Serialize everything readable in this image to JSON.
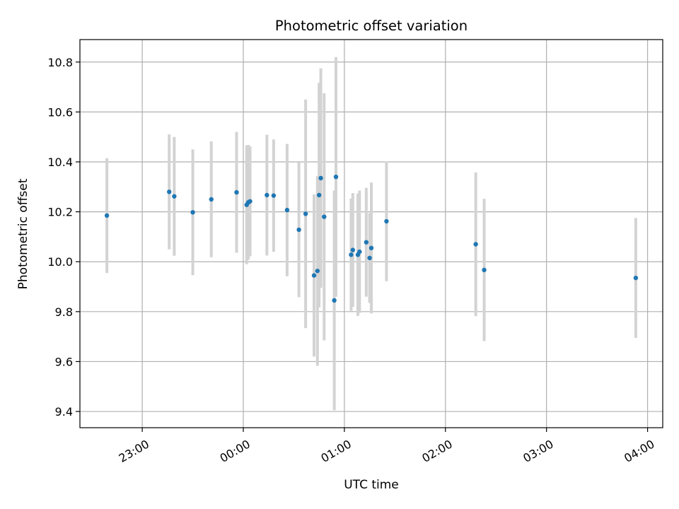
{
  "chart_data": {
    "type": "scatter",
    "title": "Photometric offset variation",
    "xlabel": "UTC time",
    "ylabel": "Photometric offset",
    "x_unit": "UTC time (HH:MM), 22:00 day 1 through 04:00 day 2",
    "xlim": [
      "22:23",
      "04:09"
    ],
    "ylim": [
      9.335,
      10.89
    ],
    "x_ticks": [
      "23:00",
      "00:00",
      "01:00",
      "02:00",
      "03:00",
      "04:00"
    ],
    "y_ticks": [
      "9.4",
      "9.6",
      "9.8",
      "10.0",
      "10.2",
      "10.4",
      "10.6",
      "10.8"
    ],
    "grid": true,
    "legend": "none",
    "colors": {
      "point": "#1f77b4",
      "errorbar": "#d3d3d3",
      "grid": "#b0b0b0"
    },
    "points": [
      {
        "x": "22:39",
        "y": 10.185,
        "err": 0.23
      },
      {
        "x": "23:16",
        "y": 10.28,
        "err": 0.23
      },
      {
        "x": "23:19",
        "y": 10.262,
        "err": 0.238
      },
      {
        "x": "23:30",
        "y": 10.198,
        "err": 0.252
      },
      {
        "x": "23:41",
        "y": 10.25,
        "err": 0.232
      },
      {
        "x": "23:56",
        "y": 10.278,
        "err": 0.242
      },
      {
        "x": "00:02",
        "y": 10.228,
        "err": 0.238
      },
      {
        "x": "00:03",
        "y": 10.238,
        "err": 0.23
      },
      {
        "x": "00:04",
        "y": 10.242,
        "err": 0.22
      },
      {
        "x": "00:14",
        "y": 10.267,
        "err": 0.242
      },
      {
        "x": "00:18",
        "y": 10.265,
        "err": 0.225
      },
      {
        "x": "00:26",
        "y": 10.207,
        "err": 0.265
      },
      {
        "x": "00:33",
        "y": 10.128,
        "err": 0.27
      },
      {
        "x": "00:37",
        "y": 10.192,
        "err": 0.458
      },
      {
        "x": "00:42",
        "y": 9.945,
        "err": 0.325
      },
      {
        "x": "00:44",
        "y": 9.963,
        "err": 0.38
      },
      {
        "x": "00:45",
        "y": 10.267,
        "err": 0.45
      },
      {
        "x": "00:46",
        "y": 10.335,
        "err": 0.44
      },
      {
        "x": "00:48",
        "y": 10.18,
        "err": 0.495
      },
      {
        "x": "00:54",
        "y": 9.845,
        "err": 0.44
      },
      {
        "x": "00:55",
        "y": 10.34,
        "err": 0.48
      },
      {
        "x": "01:04",
        "y": 10.028,
        "err": 0.225
      },
      {
        "x": "01:05",
        "y": 10.047,
        "err": 0.228
      },
      {
        "x": "01:08",
        "y": 10.028,
        "err": 0.245
      },
      {
        "x": "01:09",
        "y": 10.04,
        "err": 0.245
      },
      {
        "x": "01:13",
        "y": 10.078,
        "err": 0.218
      },
      {
        "x": "01:15",
        "y": 10.015,
        "err": 0.18
      },
      {
        "x": "01:16",
        "y": 10.055,
        "err": 0.262
      },
      {
        "x": "01:25",
        "y": 10.162,
        "err": 0.24
      },
      {
        "x": "02:18",
        "y": 10.07,
        "err": 0.288
      },
      {
        "x": "02:23",
        "y": 9.967,
        "err": 0.285
      },
      {
        "x": "03:53",
        "y": 9.935,
        "err": 0.24
      }
    ]
  }
}
